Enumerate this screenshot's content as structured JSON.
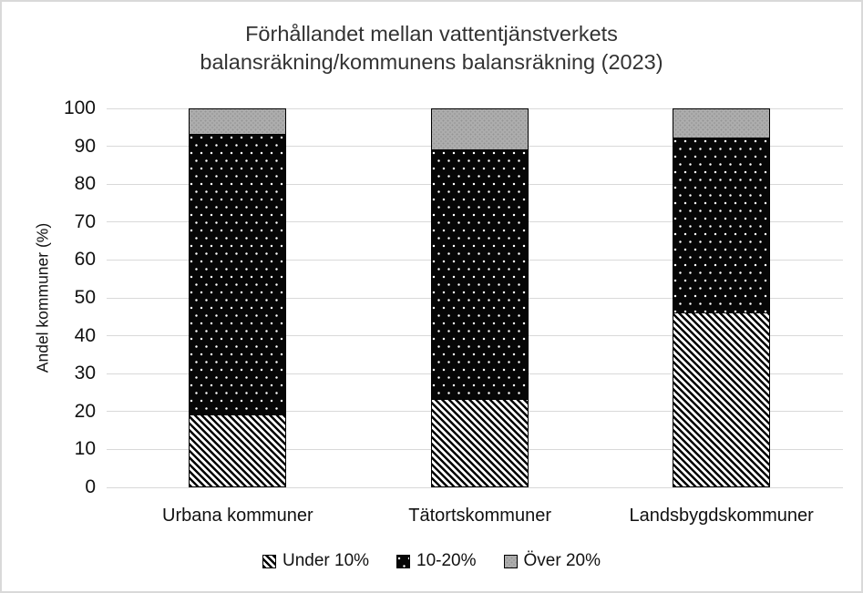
{
  "chart_data": {
    "type": "bar",
    "stacked": true,
    "title": "Förhållandet mellan vattentjänstverkets balansräkning/kommunens balansräkning (2023)",
    "title_lines": [
      "Förhållandet mellan vattentjänstverkets",
      "balansräkning/kommunens balansräkning (2023)"
    ],
    "categories": [
      "Urbana kommuner",
      "Tätortskommuner",
      "Landsbygdskommuner"
    ],
    "series": [
      {
        "name": "Under 10%",
        "pattern": "diagonal-hatch",
        "values": [
          19,
          23,
          46
        ]
      },
      {
        "name": "10-20%",
        "pattern": "white-dots-on-black",
        "values": [
          74,
          66,
          46
        ]
      },
      {
        "name": "Över 20%",
        "pattern": "solid-gray",
        "values": [
          7,
          11,
          8
        ]
      }
    ],
    "xlabel": "",
    "ylabel": "Andel kommuner (%)",
    "ylim": [
      0,
      100
    ],
    "yticks": [
      0,
      10,
      20,
      30,
      40,
      50,
      60,
      70,
      80,
      90,
      100
    ],
    "grid": true,
    "legend_position": "bottom",
    "colors": {
      "gridline": "#d9d9d9",
      "frame_border": "#d9d9d9",
      "gray_fill": "#adadad",
      "black_fill": "#060606",
      "text": "#111111",
      "title_text": "#333333"
    }
  }
}
